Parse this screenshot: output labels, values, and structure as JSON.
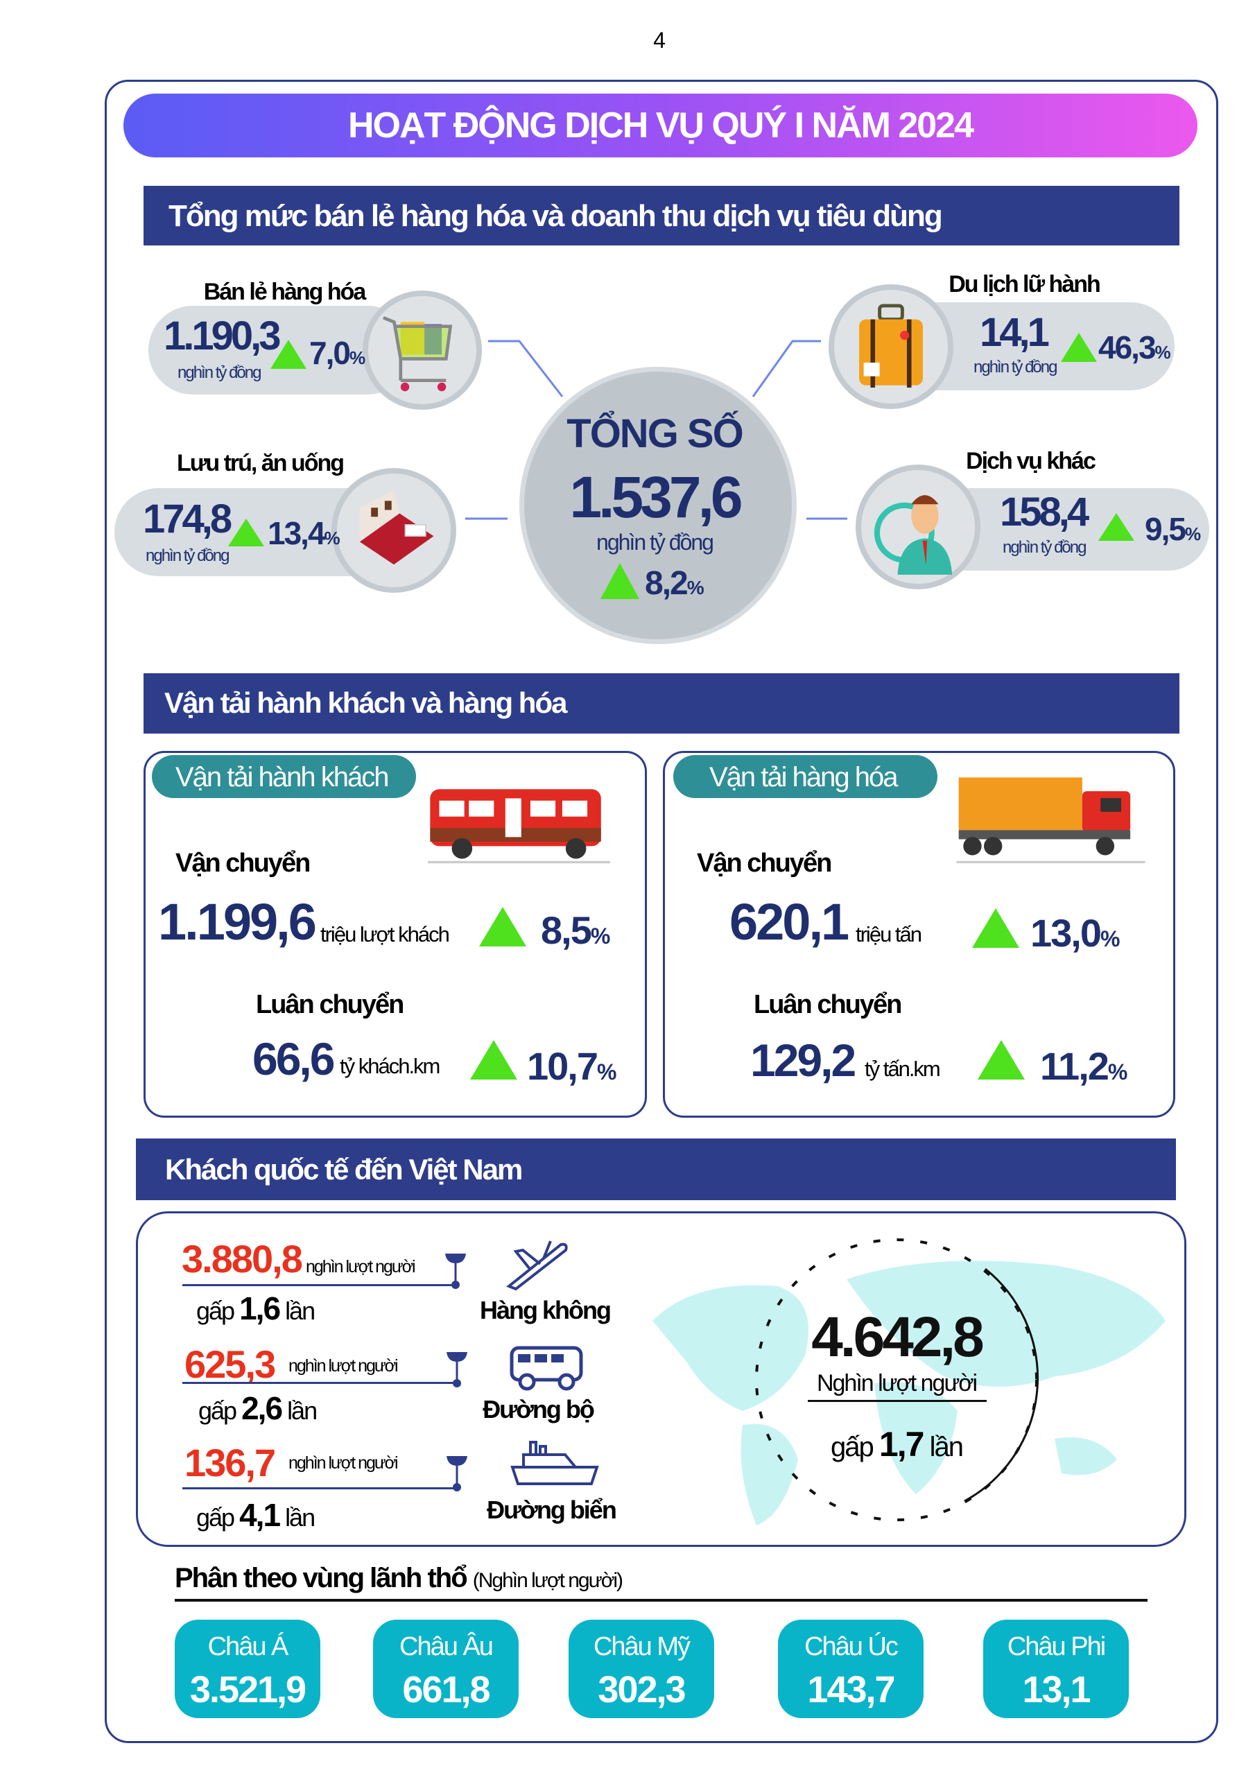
{
  "page_number": "4",
  "title": "HOẠT ĐỘNG DỊCH VỤ QUÝ I NĂM 2024",
  "retail": {
    "heading": "Tổng mức bán lẻ hàng hóa và doanh thu dịch vụ tiêu dùng",
    "total": {
      "label": "TỔNG SỐ",
      "value": "1.537,6",
      "unit": "nghìn tỷ đồng",
      "growth": "8,2",
      "pct": "%"
    },
    "items": [
      {
        "label": "Bán lẻ hàng hóa",
        "value": "1.190,3",
        "unit": "nghìn tỷ đồng",
        "growth": "7,0",
        "pct": "%",
        "icon": "shopping-cart-icon"
      },
      {
        "label": "Du lịch lữ hành",
        "value": "14,1",
        "unit": "nghìn tỷ đồng",
        "growth": "46,3",
        "pct": "%",
        "icon": "suitcase-icon"
      },
      {
        "label": "Lưu trú, ăn uống",
        "value": "174,8",
        "unit": "nghìn tỷ đồng",
        "growth": "13,4",
        "pct": "%",
        "icon": "hotel-icon"
      },
      {
        "label": "Dịch vụ khác",
        "value": "158,4",
        "unit": "nghìn tỷ đồng",
        "growth": "9,5",
        "pct": "%",
        "icon": "support-agent-icon"
      }
    ]
  },
  "transport": {
    "heading": "Vận tải hành khách và hàng hóa",
    "passenger": {
      "tag": "Vận tải hành khách",
      "carry_label": "Vận chuyển",
      "carry_value": "1.199,6",
      "carry_unit": "triệu lượt khách",
      "carry_growth": "8,5",
      "rotate_label": "Luân chuyển",
      "rotate_value": "66,6",
      "rotate_unit": "tỷ khách.km",
      "rotate_growth": "10,7",
      "pct": "%"
    },
    "cargo": {
      "tag": "Vận tải hàng hóa",
      "carry_label": "Vận chuyển",
      "carry_value": "620,1",
      "carry_unit": "triệu tấn",
      "carry_growth": "13,0",
      "rotate_label": "Luân chuyển",
      "rotate_value": "129,2",
      "rotate_unit": "tỷ tấn.km",
      "rotate_growth": "11,2",
      "pct": "%"
    }
  },
  "visitors": {
    "heading": "Khách quốc tế đến Việt Nam",
    "modes": [
      {
        "value": "3.880,8",
        "unit": "nghìn lượt người",
        "times_prefix": "gấp",
        "times": "1,6",
        "times_suffix": "lần",
        "label": "Hàng không"
      },
      {
        "value": "625,3",
        "unit": "nghìn lượt người",
        "times_prefix": "gấp",
        "times": "2,6",
        "times_suffix": "lần",
        "label": "Đường bộ"
      },
      {
        "value": "136,7",
        "unit": "nghìn lượt người",
        "times_prefix": "gấp",
        "times": "4,1",
        "times_suffix": "lần",
        "label": "Đường biển"
      }
    ],
    "total": {
      "value": "4.642,8",
      "unit": "Nghìn lượt người",
      "times_prefix": "gấp",
      "times": "1,7",
      "times_suffix": "lần"
    },
    "region_heading": "Phân theo vùng lãnh thổ",
    "region_unit": "(Nghìn lượt người)",
    "regions": [
      {
        "label": "Châu Á",
        "value": "3.521,9"
      },
      {
        "label": "Châu Âu",
        "value": "661,8"
      },
      {
        "label": "Châu Mỹ",
        "value": "302,3"
      },
      {
        "label": "Châu Úc",
        "value": "143,7"
      },
      {
        "label": "Châu Phi",
        "value": "13,1"
      }
    ]
  },
  "colors": {
    "navy": "#2e3d8a",
    "green": "#4fe01e",
    "red": "#e8321e",
    "teal": "#0ab4c8"
  }
}
